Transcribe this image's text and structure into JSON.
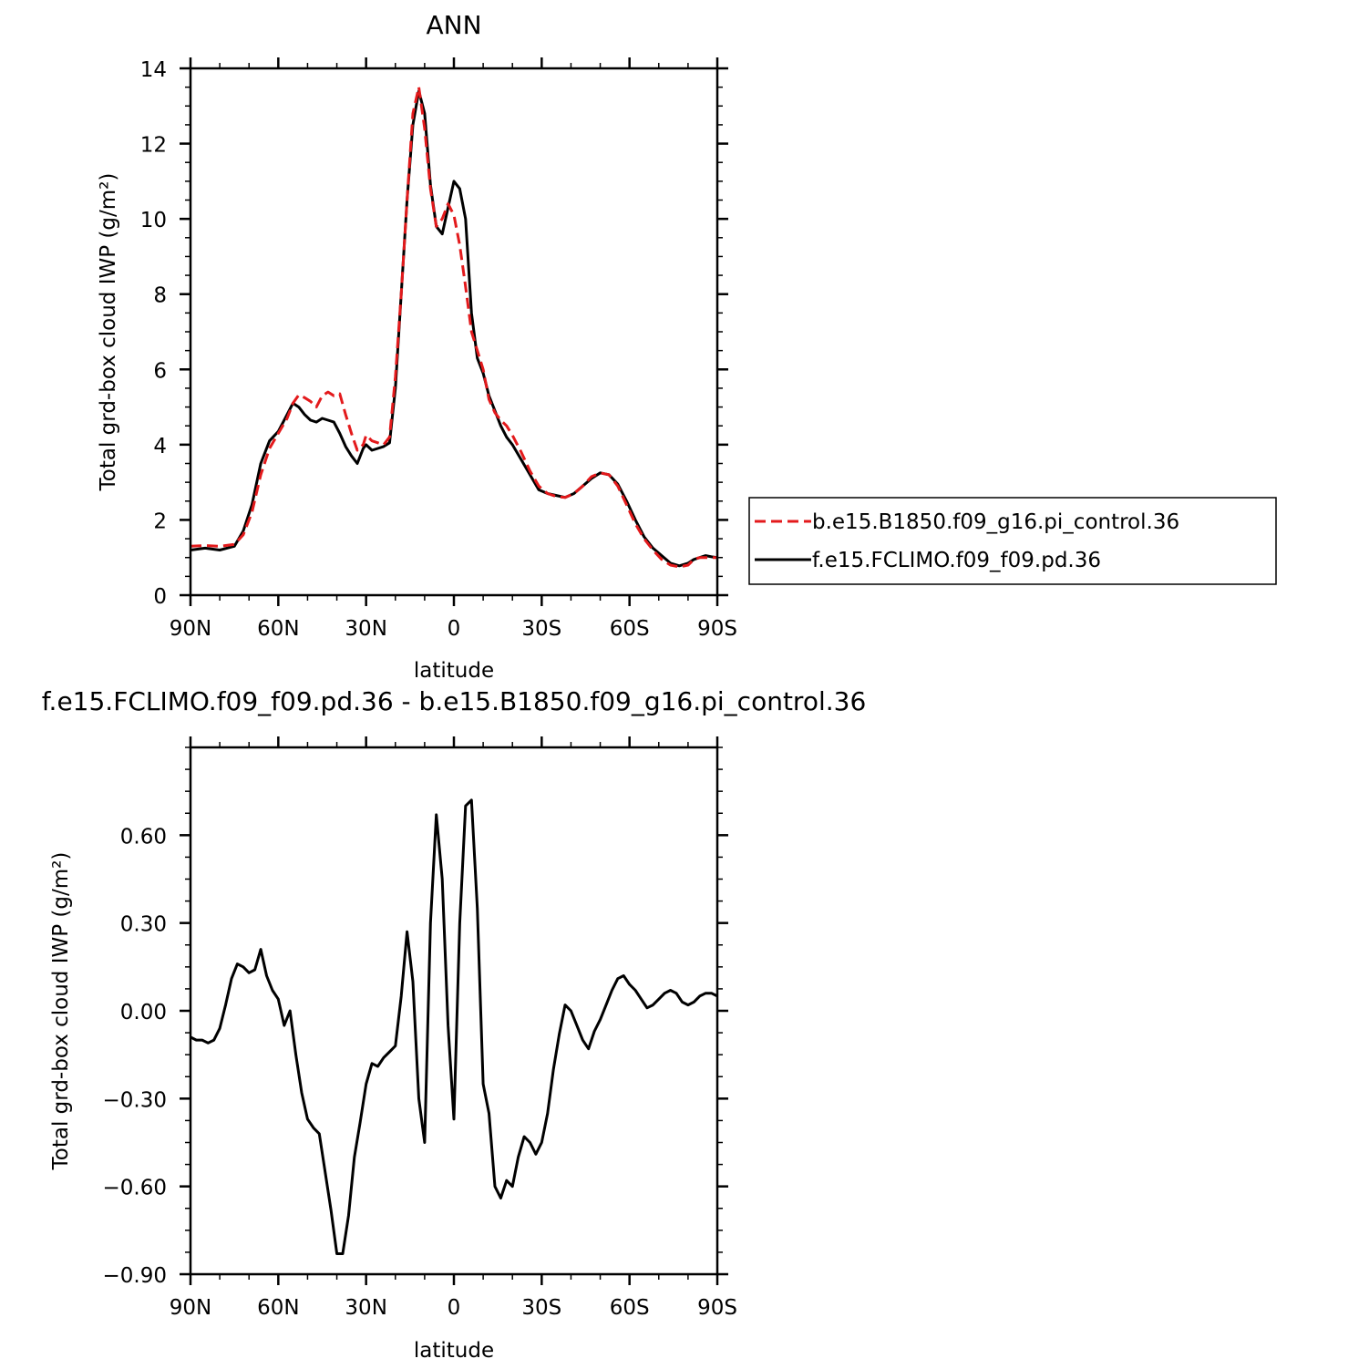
{
  "chart_data": [
    {
      "type": "line",
      "title": "ANN",
      "xlabel": "latitude",
      "ylabel": "Total grd-box cloud IWP (g/m²)",
      "x_ticks": [
        -90,
        -60,
        -30,
        0,
        30,
        60,
        90
      ],
      "x_tick_labels": [
        "90N",
        "60N",
        "30N",
        "0",
        "30S",
        "60S",
        "90S"
      ],
      "xlim": [
        -90,
        90
      ],
      "ylim": [
        0,
        14
      ],
      "y_ticks": [
        0,
        2,
        4,
        6,
        8,
        10,
        12,
        14
      ],
      "y_tick_labels": [
        "0",
        "2",
        "4",
        "6",
        "8",
        "10",
        "12",
        "14"
      ],
      "grid": false,
      "legend_position": "right",
      "series": [
        {
          "name": "b.e15.B1850.f09_g16.pi_control.36",
          "color": "#e31a1c",
          "dash": "dashed",
          "x": [
            -90,
            -85,
            -80,
            -75,
            -72,
            -69,
            -66,
            -63,
            -60,
            -57,
            -55,
            -53,
            -51,
            -49,
            -47,
            -45,
            -43,
            -41,
            -39,
            -37,
            -35,
            -33,
            -31,
            -30,
            -28,
            -26,
            -24,
            -22,
            -20,
            -18,
            -16,
            -14,
            -12,
            -10,
            -8,
            -6,
            -4,
            -2,
            0,
            2,
            4,
            6,
            8,
            10,
            12,
            14,
            16,
            18,
            20,
            23,
            26,
            29,
            32,
            35,
            38,
            41,
            44,
            47,
            50,
            53,
            56,
            59,
            62,
            65,
            68,
            71,
            74,
            77,
            80,
            82,
            84,
            86,
            88,
            90
          ],
          "y": [
            1.3,
            1.32,
            1.3,
            1.35,
            1.6,
            2.2,
            3.2,
            3.9,
            4.3,
            4.7,
            5.1,
            5.32,
            5.25,
            5.15,
            5.0,
            5.3,
            5.4,
            5.3,
            5.35,
            4.8,
            4.3,
            3.85,
            4.0,
            4.25,
            4.1,
            4.05,
            4.0,
            4.2,
            5.8,
            8.0,
            10.5,
            12.8,
            13.5,
            12.4,
            10.8,
            9.8,
            10.0,
            10.4,
            10.1,
            9.3,
            8.2,
            7.0,
            6.5,
            6.0,
            5.2,
            4.85,
            4.65,
            4.5,
            4.25,
            3.8,
            3.3,
            2.9,
            2.7,
            2.62,
            2.6,
            2.7,
            2.9,
            3.15,
            3.25,
            3.2,
            2.9,
            2.4,
            1.9,
            1.5,
            1.2,
            0.95,
            0.8,
            0.75,
            0.8,
            0.95,
            1.0,
            1.0,
            1.0,
            1.0
          ]
        },
        {
          "name": "f.e15.FCLIMO.f09_f09.pd.36",
          "color": "#000000",
          "dash": "solid",
          "x": [
            -90,
            -85,
            -80,
            -75,
            -72,
            -69,
            -66,
            -63,
            -60,
            -57,
            -55,
            -53,
            -51,
            -49,
            -47,
            -45,
            -43,
            -41,
            -39,
            -37,
            -35,
            -33,
            -31,
            -30,
            -28,
            -26,
            -24,
            -22,
            -20,
            -18,
            -16,
            -14,
            -12,
            -10,
            -8,
            -6,
            -4,
            -2,
            0,
            2,
            4,
            6,
            8,
            10,
            12,
            14,
            16,
            18,
            20,
            23,
            26,
            29,
            32,
            35,
            38,
            41,
            44,
            47,
            50,
            53,
            56,
            59,
            62,
            65,
            68,
            71,
            74,
            77,
            80,
            82,
            84,
            86,
            88,
            90
          ],
          "y": [
            1.2,
            1.25,
            1.2,
            1.3,
            1.7,
            2.4,
            3.5,
            4.1,
            4.35,
            4.8,
            5.1,
            5.0,
            4.8,
            4.65,
            4.6,
            4.7,
            4.65,
            4.6,
            4.3,
            3.95,
            3.7,
            3.5,
            3.9,
            4.0,
            3.85,
            3.9,
            3.95,
            4.05,
            5.5,
            8.0,
            10.5,
            12.5,
            13.4,
            12.8,
            10.9,
            9.8,
            9.6,
            10.3,
            11.0,
            10.8,
            10.0,
            7.5,
            6.3,
            5.9,
            5.3,
            4.9,
            4.5,
            4.2,
            4.0,
            3.6,
            3.2,
            2.8,
            2.7,
            2.65,
            2.6,
            2.7,
            2.9,
            3.1,
            3.25,
            3.2,
            2.95,
            2.5,
            2.0,
            1.55,
            1.25,
            1.05,
            0.85,
            0.78,
            0.85,
            0.95,
            1.0,
            1.05,
            1.02,
            1.0
          ]
        }
      ]
    },
    {
      "type": "line",
      "title": "f.e15.FCLIMO.f09_f09.pd.36 - b.e15.B1850.f09_g16.pi_control.36",
      "xlabel": "latitude",
      "ylabel": "Total grd-box cloud IWP (g/m²)",
      "x_ticks": [
        -90,
        -60,
        -30,
        0,
        30,
        60,
        90
      ],
      "x_tick_labels": [
        "90N",
        "60N",
        "30N",
        "0",
        "30S",
        "60S",
        "90S"
      ],
      "xlim": [
        -90,
        90
      ],
      "ylim": [
        -0.9,
        0.9
      ],
      "y_ticks": [
        -0.9,
        -0.6,
        -0.3,
        0.0,
        0.3,
        0.6
      ],
      "y_tick_labels": [
        "-0.90",
        "-0.60",
        "-0.30",
        "0.00",
        "0.30",
        "0.60"
      ],
      "grid": false,
      "series": [
        {
          "color": "#000000",
          "dash": "solid",
          "x": [
            -90,
            -88,
            -86,
            -84,
            -82,
            -80,
            -78,
            -76,
            -74,
            -72,
            -70,
            -68,
            -66,
            -64,
            -62,
            -60,
            -58,
            -56,
            -54,
            -52,
            -50,
            -48,
            -46,
            -44,
            -42,
            -40,
            -38,
            -36,
            -34,
            -32,
            -30,
            -28,
            -26,
            -24,
            -22,
            -20,
            -18,
            -16,
            -14,
            -12,
            -10,
            -8,
            -6,
            -4,
            -2,
            0,
            2,
            4,
            6,
            8,
            10,
            12,
            14,
            16,
            18,
            20,
            22,
            24,
            26,
            28,
            30,
            32,
            34,
            36,
            38,
            40,
            42,
            44,
            46,
            48,
            50,
            52,
            54,
            56,
            58,
            60,
            62,
            64,
            66,
            68,
            70,
            72,
            74,
            76,
            78,
            80,
            82,
            84,
            86,
            88,
            90
          ],
          "y": [
            -0.09,
            -0.1,
            -0.1,
            -0.11,
            -0.1,
            -0.06,
            0.02,
            0.11,
            0.16,
            0.15,
            0.13,
            0.14,
            0.21,
            0.12,
            0.07,
            0.04,
            -0.05,
            0.0,
            -0.15,
            -0.28,
            -0.37,
            -0.4,
            -0.42,
            -0.55,
            -0.68,
            -0.83,
            -0.83,
            -0.7,
            -0.5,
            -0.38,
            -0.25,
            -0.18,
            -0.19,
            -0.16,
            -0.14,
            -0.12,
            0.05,
            0.27,
            0.1,
            -0.3,
            -0.45,
            0.3,
            0.67,
            0.45,
            -0.05,
            -0.37,
            0.3,
            0.7,
            0.72,
            0.35,
            -0.25,
            -0.35,
            -0.6,
            -0.64,
            -0.58,
            -0.6,
            -0.5,
            -0.43,
            -0.45,
            -0.49,
            -0.45,
            -0.35,
            -0.2,
            -0.08,
            0.02,
            0.0,
            -0.05,
            -0.1,
            -0.13,
            -0.07,
            -0.03,
            0.02,
            0.07,
            0.11,
            0.12,
            0.09,
            0.07,
            0.04,
            0.01,
            0.02,
            0.04,
            0.06,
            0.07,
            0.06,
            0.03,
            0.02,
            0.03,
            0.05,
            0.06,
            0.06,
            0.05
          ]
        }
      ]
    }
  ]
}
